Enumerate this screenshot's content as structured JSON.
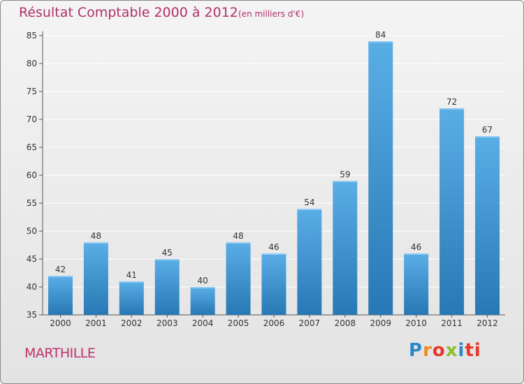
{
  "header": {
    "title": "Résultat Comptable 2000 à 2012",
    "unit": "(en milliers d'€)"
  },
  "footer": {
    "commune": "MARTHILLE",
    "logo": [
      "P",
      "r",
      "o",
      "x",
      "i",
      "ti"
    ]
  },
  "chart_data": {
    "type": "bar",
    "title": "Résultat Comptable 2000 à 2012",
    "subtitle": "(en milliers d'€)",
    "xlabel": "",
    "ylabel": "",
    "categories": [
      "2000",
      "2001",
      "2002",
      "2003",
      "2004",
      "2005",
      "2006",
      "2007",
      "2008",
      "2009",
      "2010",
      "2011",
      "2012"
    ],
    "values": [
      42,
      48,
      41,
      45,
      40,
      48,
      46,
      54,
      59,
      84,
      46,
      72,
      67
    ],
    "ylim": [
      35,
      85
    ],
    "yticks": [
      35,
      40,
      45,
      50,
      55,
      60,
      65,
      70,
      75,
      80,
      85
    ],
    "grid": true,
    "legend": "none",
    "colors": {
      "bar_top": "#5aaee6",
      "bar_bottom": "#2778b4",
      "grid": "#ffffff",
      "axis": "#555555"
    }
  }
}
